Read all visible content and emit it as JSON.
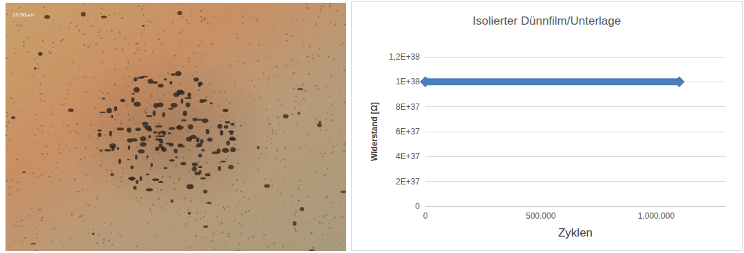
{
  "image": {
    "scale_label": "10.00um"
  },
  "chart_data": {
    "type": "line",
    "title": "Isolierter Dünnfilm/Unterlage",
    "x_label": "Zyklen",
    "y_label": "Widerstand [Ω]",
    "x": [
      0,
      1100000
    ],
    "series": [
      {
        "name": "Widerstand",
        "color": "#4a7ebb",
        "marker": "diamond",
        "values": [
          1e+38,
          1e+38
        ]
      }
    ],
    "xlim": [
      0,
      1300000
    ],
    "xticks": [
      0,
      {
        "value": 500000,
        "label": "500.000"
      },
      {
        "value": 1000000,
        "label": "1.000.000"
      }
    ],
    "ylim": [
      0,
      1.2e+38
    ],
    "yticks": [
      0,
      {
        "value": 2e+37,
        "label": "2E+37"
      },
      {
        "value": 4e+37,
        "label": "4E+37"
      },
      {
        "value": 6e+37,
        "label": "6E+37"
      },
      {
        "value": 8e+37,
        "label": "8E+37"
      },
      {
        "value": 1e+38,
        "label": "1E+38"
      },
      {
        "value": 1.2e+38,
        "label": "1,2E+38"
      }
    ],
    "grid": true
  }
}
